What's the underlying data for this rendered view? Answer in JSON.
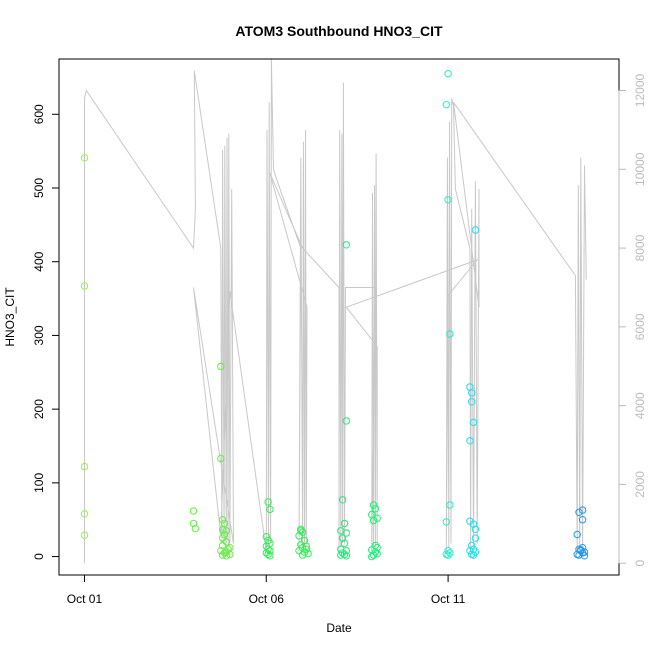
{
  "chart_data": {
    "type": "scatter",
    "title": "ATOM3 Southbound HNO3_CIT",
    "xlabel": "Date",
    "ylabel": "HNO3_CIT",
    "x_ticks": [
      {
        "value": 1,
        "label": "Oct 01"
      },
      {
        "value": 6,
        "label": "Oct 06"
      },
      {
        "value": 11,
        "label": "Oct 11"
      }
    ],
    "xlim": [
      0.3,
      15.7
    ],
    "ylim": [
      -25,
      675
    ],
    "y_ticks": [
      0,
      100,
      200,
      300,
      400,
      500,
      600
    ],
    "y2lim": [
      -300,
      12800
    ],
    "y2_ticks": [
      0,
      2000,
      4000,
      6000,
      8000,
      10000,
      12000
    ],
    "y2_axis_color": "#bbbbbb",
    "grid": false,
    "legend": "none",
    "series": [
      {
        "color": "#99ee44",
        "points": [
          [
            1.0,
            541
          ],
          [
            1.0,
            367
          ],
          [
            1.0,
            122
          ],
          [
            1.0,
            58
          ],
          [
            1.0,
            29
          ]
        ]
      },
      {
        "color": "#66ee44",
        "points": [
          [
            4.0,
            62
          ],
          [
            4.0,
            45
          ],
          [
            4.05,
            38
          ],
          [
            4.75,
            258
          ],
          [
            4.75,
            133
          ],
          [
            4.8,
            50
          ],
          [
            4.85,
            45
          ],
          [
            4.8,
            36
          ],
          [
            4.9,
            35
          ],
          [
            4.85,
            30
          ],
          [
            4.8,
            25
          ],
          [
            4.9,
            20
          ],
          [
            4.8,
            15
          ],
          [
            4.95,
            10
          ],
          [
            4.75,
            8
          ],
          [
            4.85,
            5
          ],
          [
            5.0,
            3
          ],
          [
            4.8,
            2
          ],
          [
            4.9,
            1
          ],
          [
            5.0,
            12
          ],
          [
            4.9,
            6
          ]
        ]
      },
      {
        "color": "#33ee55",
        "points": [
          [
            6.05,
            74
          ],
          [
            6.1,
            64
          ],
          [
            6.0,
            27
          ],
          [
            6.05,
            22
          ],
          [
            6.1,
            18
          ],
          [
            6.0,
            14
          ],
          [
            6.05,
            10
          ],
          [
            6.1,
            8
          ],
          [
            6.0,
            5
          ],
          [
            6.05,
            3
          ],
          [
            6.1,
            1
          ],
          [
            6.95,
            37
          ],
          [
            7.0,
            33
          ],
          [
            6.9,
            28
          ],
          [
            7.05,
            22
          ],
          [
            6.95,
            16
          ],
          [
            7.0,
            12
          ],
          [
            7.1,
            10
          ],
          [
            6.9,
            8
          ],
          [
            7.05,
            6
          ],
          [
            7.15,
            4
          ],
          [
            7.0,
            2
          ],
          [
            6.95,
            35
          ],
          [
            7.1,
            14
          ]
        ]
      },
      {
        "color": "#22ee77",
        "points": [
          [
            8.2,
            423
          ],
          [
            8.2,
            184
          ],
          [
            8.1,
            77
          ],
          [
            8.15,
            45
          ],
          [
            8.05,
            35
          ],
          [
            8.2,
            32
          ],
          [
            8.1,
            25
          ],
          [
            8.15,
            18
          ],
          [
            8.05,
            10
          ],
          [
            8.2,
            8
          ],
          [
            8.1,
            5
          ],
          [
            8.15,
            3
          ],
          [
            8.05,
            2
          ],
          [
            8.2,
            1
          ],
          [
            8.95,
            70
          ],
          [
            9.0,
            65
          ],
          [
            8.9,
            57
          ],
          [
            9.05,
            52
          ],
          [
            8.95,
            49
          ],
          [
            9.0,
            15
          ],
          [
            9.05,
            12
          ],
          [
            8.9,
            9
          ],
          [
            9.0,
            6
          ],
          [
            9.05,
            4
          ],
          [
            8.95,
            2
          ],
          [
            8.9,
            0
          ]
        ]
      },
      {
        "color": "#22eecc",
        "points": [
          [
            11.0,
            655
          ],
          [
            10.95,
            613
          ],
          [
            11.0,
            484
          ],
          [
            11.05,
            302
          ],
          [
            11.05,
            70
          ],
          [
            10.95,
            47
          ],
          [
            11.0,
            8
          ],
          [
            11.05,
            5
          ],
          [
            10.95,
            3
          ],
          [
            11.0,
            2
          ]
        ]
      },
      {
        "color": "#22ddee",
        "points": [
          [
            11.75,
            443
          ],
          [
            11.6,
            230
          ],
          [
            11.65,
            222
          ],
          [
            11.65,
            210
          ],
          [
            11.7,
            182
          ],
          [
            11.6,
            157
          ],
          [
            11.6,
            48
          ],
          [
            11.7,
            44
          ],
          [
            11.75,
            37
          ],
          [
            11.75,
            25
          ],
          [
            11.65,
            15
          ],
          [
            11.7,
            10
          ],
          [
            11.6,
            8
          ],
          [
            11.75,
            6
          ],
          [
            11.65,
            3
          ],
          [
            11.7,
            2
          ]
        ]
      },
      {
        "color": "#2299ee",
        "points": [
          [
            14.7,
            63
          ],
          [
            14.6,
            60
          ],
          [
            14.55,
            30
          ],
          [
            14.7,
            50
          ],
          [
            14.6,
            10
          ],
          [
            14.65,
            8
          ],
          [
            14.75,
            6
          ],
          [
            14.7,
            5
          ],
          [
            14.55,
            3
          ],
          [
            14.6,
            2
          ],
          [
            14.75,
            1
          ],
          [
            14.65,
            9
          ],
          [
            14.7,
            12
          ]
        ]
      }
    ],
    "altitude_trace": {
      "color": "#c8c8c8",
      "axis": "right",
      "points": [
        [
          1.0,
          0
        ],
        [
          1.0,
          11800
        ],
        [
          1.05,
          12000
        ],
        [
          4.0,
          8000
        ],
        [
          4.05,
          9000
        ],
        [
          4.02,
          12500
        ],
        [
          4.75,
          8000
        ],
        [
          4.78,
          500
        ],
        [
          4.8,
          10500
        ],
        [
          4.84,
          500
        ],
        [
          4.86,
          10600
        ],
        [
          4.9,
          500
        ],
        [
          4.92,
          10800
        ],
        [
          4.95,
          500
        ],
        [
          4.97,
          10900
        ],
        [
          5.0,
          500
        ],
        [
          5.05,
          9500
        ],
        [
          5.1,
          500
        ],
        [
          4.0,
          7000
        ],
        [
          4.75,
          700
        ],
        [
          5.0,
          6900
        ],
        [
          6.0,
          300
        ],
        [
          6.02,
          11000
        ],
        [
          6.06,
          500
        ],
        [
          6.08,
          11700
        ],
        [
          6.12,
          500
        ],
        [
          6.14,
          12800
        ],
        [
          6.2,
          10000
        ],
        [
          6.3,
          9700
        ],
        [
          6.95,
          8000
        ],
        [
          6.9,
          300
        ],
        [
          6.95,
          10300
        ],
        [
          7.0,
          400
        ],
        [
          7.02,
          10700
        ],
        [
          7.05,
          400
        ],
        [
          7.08,
          11000
        ],
        [
          7.1,
          500
        ],
        [
          7.12,
          6500
        ],
        [
          6.1,
          9900
        ],
        [
          7.0,
          8000
        ],
        [
          8.0,
          7000
        ],
        [
          8.0,
          300
        ],
        [
          8.02,
          11000
        ],
        [
          8.05,
          400
        ],
        [
          8.08,
          10900
        ],
        [
          8.1,
          500
        ],
        [
          8.12,
          12200
        ],
        [
          8.15,
          500
        ],
        [
          8.18,
          7000
        ],
        [
          9.0,
          7000
        ],
        [
          8.9,
          300
        ],
        [
          8.92,
          9400
        ],
        [
          8.95,
          400
        ],
        [
          8.98,
          9600
        ],
        [
          9.0,
          400
        ],
        [
          9.02,
          10400
        ],
        [
          9.05,
          500
        ],
        [
          9.05,
          5500
        ],
        [
          8.2,
          6500
        ],
        [
          11.8,
          7700
        ],
        [
          11.0,
          6800
        ],
        [
          10.95,
          300
        ],
        [
          10.98,
          10300
        ],
        [
          11.02,
          400
        ],
        [
          11.04,
          11200
        ],
        [
          11.08,
          500
        ],
        [
          11.1,
          11800
        ],
        [
          11.15,
          11600
        ],
        [
          11.2,
          9500
        ],
        [
          11.6,
          8000
        ],
        [
          11.62,
          300
        ],
        [
          11.65,
          9000
        ],
        [
          11.7,
          400
        ],
        [
          11.75,
          9700
        ],
        [
          11.8,
          500
        ],
        [
          11.85,
          9500
        ],
        [
          11.85,
          6500
        ],
        [
          11.15,
          11700
        ],
        [
          14.5,
          7300
        ],
        [
          14.55,
          300
        ],
        [
          14.58,
          9600
        ],
        [
          14.62,
          400
        ],
        [
          14.65,
          10300
        ],
        [
          14.7,
          400
        ],
        [
          14.75,
          10100
        ],
        [
          14.8,
          7200
        ]
      ]
    }
  }
}
